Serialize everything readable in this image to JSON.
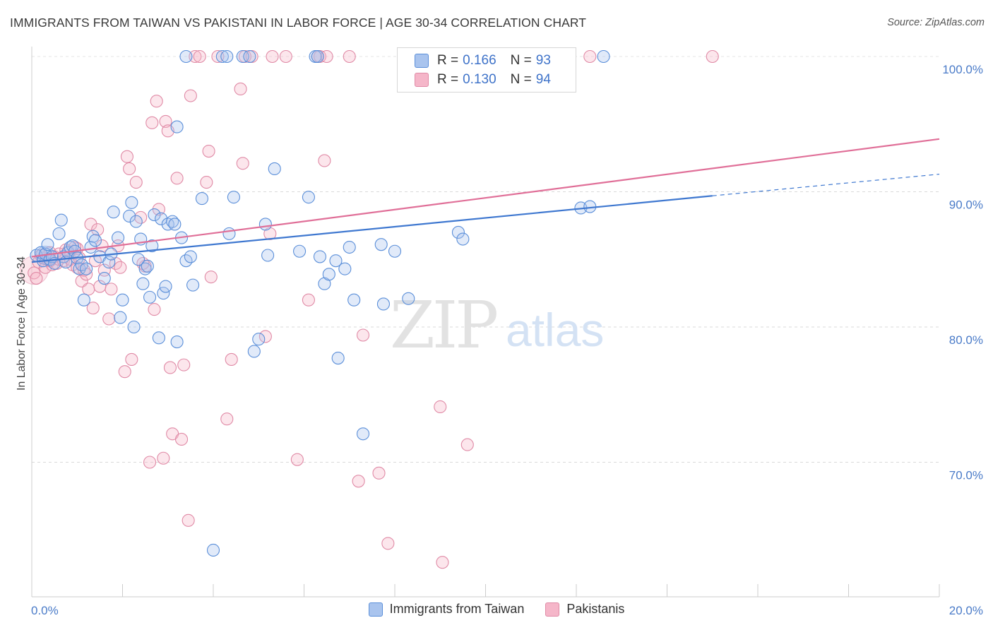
{
  "title": "IMMIGRANTS FROM TAIWAN VS PAKISTANI IN LABOR FORCE | AGE 30-34 CORRELATION CHART",
  "source_label": "Source: ZipAtlas.com",
  "watermark": {
    "zip": "ZIP",
    "atlas": "atlas"
  },
  "colors": {
    "blue_fill": "#a9c4ee",
    "blue_stroke": "#5b8fd9",
    "blue_line": "#3f78d0",
    "pink_fill": "#f5b6c9",
    "pink_stroke": "#e08aa6",
    "pink_line": "#e06f98",
    "grid": "#d9d9d9",
    "tick_text": "#4a7bc8"
  },
  "legend": {
    "rows": [
      {
        "r_label": "R =",
        "r_value": "0.166",
        "n_label": "N =",
        "n_value": "93"
      },
      {
        "r_label": "R =",
        "r_value": "0.130",
        "n_label": "N =",
        "n_value": "94"
      }
    ]
  },
  "bottom_legend": [
    "Immigrants from Taiwan",
    "Pakistanis"
  ],
  "chart_data": {
    "type": "scatter",
    "title": "IMMIGRANTS FROM TAIWAN VS PAKISTANI IN LABOR FORCE | AGE 30-34 CORRELATION CHART",
    "xlabel": "",
    "ylabel": "In Labor Force | Age 30-34",
    "xlim": [
      0,
      20
    ],
    "ylim": [
      60,
      102
    ],
    "x_tick_labels": [
      "0.0%",
      "20.0%"
    ],
    "y_ticks": [
      70,
      80,
      90,
      100
    ],
    "y_tick_labels": [
      "70.0%",
      "80.0%",
      "90.0%",
      "100.0%"
    ],
    "grid": true,
    "series": [
      {
        "name": "Immigrants from Taiwan",
        "R": 0.166,
        "N": 93,
        "trend": {
          "x0": 0,
          "y0": 84.8,
          "x1": 15.0,
          "y1": 89.7,
          "dash_to_x": 20,
          "dash_to_y": 91.3
        },
        "points": [
          [
            0.1,
            85.3
          ],
          [
            0.2,
            85.5
          ],
          [
            0.25,
            84.9
          ],
          [
            0.3,
            85.4
          ],
          [
            0.35,
            86.1
          ],
          [
            0.4,
            85.0
          ],
          [
            0.45,
            85.2
          ],
          [
            0.5,
            84.7
          ],
          [
            0.6,
            86.9
          ],
          [
            0.65,
            87.9
          ],
          [
            0.7,
            85.2
          ],
          [
            0.75,
            84.8
          ],
          [
            0.8,
            85.5
          ],
          [
            0.85,
            85.9
          ],
          [
            0.9,
            86.0
          ],
          [
            0.95,
            85.6
          ],
          [
            1.0,
            85.1
          ],
          [
            1.05,
            84.3
          ],
          [
            1.1,
            84.6
          ],
          [
            1.15,
            82.0
          ],
          [
            1.2,
            84.3
          ],
          [
            1.3,
            85.9
          ],
          [
            1.35,
            86.7
          ],
          [
            1.4,
            86.4
          ],
          [
            1.5,
            85.2
          ],
          [
            1.6,
            83.6
          ],
          [
            1.7,
            84.8
          ],
          [
            1.75,
            85.4
          ],
          [
            1.8,
            88.5
          ],
          [
            1.9,
            86.6
          ],
          [
            1.95,
            80.7
          ],
          [
            2.0,
            82.0
          ],
          [
            2.15,
            88.2
          ],
          [
            2.2,
            89.2
          ],
          [
            2.25,
            80.0
          ],
          [
            2.3,
            87.8
          ],
          [
            2.35,
            85.0
          ],
          [
            2.4,
            86.5
          ],
          [
            2.45,
            83.2
          ],
          [
            2.5,
            84.3
          ],
          [
            2.55,
            84.5
          ],
          [
            2.6,
            82.2
          ],
          [
            2.65,
            86.0
          ],
          [
            2.7,
            88.3
          ],
          [
            2.8,
            79.2
          ],
          [
            2.85,
            88.0
          ],
          [
            2.9,
            82.5
          ],
          [
            2.95,
            83.0
          ],
          [
            3.0,
            87.6
          ],
          [
            3.1,
            87.8
          ],
          [
            3.15,
            87.6
          ],
          [
            3.2,
            78.9
          ],
          [
            3.3,
            86.6
          ],
          [
            3.4,
            84.9
          ],
          [
            3.5,
            85.2
          ],
          [
            3.55,
            83.1
          ],
          [
            3.75,
            89.5
          ],
          [
            4.0,
            63.5
          ],
          [
            4.2,
            100.0
          ],
          [
            4.3,
            100.0
          ],
          [
            4.35,
            86.9
          ],
          [
            4.45,
            89.6
          ],
          [
            4.65,
            100.0
          ],
          [
            4.8,
            100.0
          ],
          [
            4.9,
            78.2
          ],
          [
            5.0,
            79.1
          ],
          [
            5.15,
            87.6
          ],
          [
            5.2,
            85.3
          ],
          [
            5.35,
            91.7
          ],
          [
            5.9,
            85.6
          ],
          [
            6.1,
            89.6
          ],
          [
            6.25,
            100.0
          ],
          [
            6.3,
            100.0
          ],
          [
            6.35,
            85.2
          ],
          [
            6.45,
            83.2
          ],
          [
            6.55,
            83.9
          ],
          [
            6.7,
            84.9
          ],
          [
            6.75,
            77.7
          ],
          [
            6.9,
            84.3
          ],
          [
            7.0,
            85.9
          ],
          [
            7.1,
            82.0
          ],
          [
            7.3,
            72.1
          ],
          [
            7.7,
            86.1
          ],
          [
            7.75,
            81.7
          ],
          [
            8.0,
            85.6
          ],
          [
            8.3,
            82.1
          ],
          [
            9.4,
            87.0
          ],
          [
            9.5,
            86.5
          ],
          [
            12.1,
            88.8
          ],
          [
            12.3,
            88.9
          ],
          [
            12.6,
            100.0
          ],
          [
            3.4,
            100.0
          ],
          [
            3.2,
            94.8
          ]
        ]
      },
      {
        "name": "Pakistanis",
        "R": 0.13,
        "N": 94,
        "trend": {
          "x0": 0,
          "y0": 85.2,
          "x1": 20,
          "y1": 93.9
        },
        "points": [
          [
            0.05,
            84.0
          ],
          [
            0.1,
            83.6
          ],
          [
            0.15,
            84.8
          ],
          [
            0.2,
            85.3
          ],
          [
            0.25,
            85.1
          ],
          [
            0.3,
            84.4
          ],
          [
            0.35,
            85.0
          ],
          [
            0.4,
            85.5
          ],
          [
            0.45,
            84.6
          ],
          [
            0.5,
            85.2
          ],
          [
            0.55,
            84.7
          ],
          [
            0.6,
            85.0
          ],
          [
            0.7,
            84.9
          ],
          [
            0.8,
            85.6
          ],
          [
            0.85,
            85.0
          ],
          [
            0.9,
            84.6
          ],
          [
            1.0,
            84.4
          ],
          [
            1.05,
            85.1
          ],
          [
            1.1,
            83.4
          ],
          [
            1.15,
            84.2
          ],
          [
            1.2,
            83.9
          ],
          [
            1.25,
            82.8
          ],
          [
            1.3,
            87.6
          ],
          [
            1.35,
            81.4
          ],
          [
            1.45,
            87.2
          ],
          [
            1.55,
            86.0
          ],
          [
            1.6,
            84.2
          ],
          [
            1.7,
            80.6
          ],
          [
            1.75,
            82.8
          ],
          [
            1.85,
            84.7
          ],
          [
            1.9,
            86.0
          ],
          [
            1.95,
            84.4
          ],
          [
            2.05,
            76.7
          ],
          [
            2.1,
            92.6
          ],
          [
            2.15,
            91.7
          ],
          [
            2.2,
            77.6
          ],
          [
            2.3,
            90.7
          ],
          [
            2.4,
            88.1
          ],
          [
            2.5,
            84.5
          ],
          [
            2.6,
            70.0
          ],
          [
            2.65,
            95.1
          ],
          [
            2.7,
            81.3
          ],
          [
            2.75,
            96.7
          ],
          [
            2.8,
            88.7
          ],
          [
            2.9,
            70.3
          ],
          [
            2.95,
            95.2
          ],
          [
            3.0,
            94.5
          ],
          [
            3.05,
            77.0
          ],
          [
            3.1,
            72.1
          ],
          [
            3.2,
            91.0
          ],
          [
            3.3,
            71.7
          ],
          [
            3.35,
            77.2
          ],
          [
            3.45,
            65.7
          ],
          [
            3.5,
            97.1
          ],
          [
            3.6,
            100.0
          ],
          [
            3.7,
            100.0
          ],
          [
            3.85,
            90.7
          ],
          [
            3.9,
            93.0
          ],
          [
            3.95,
            83.7
          ],
          [
            4.1,
            100.0
          ],
          [
            4.3,
            73.2
          ],
          [
            4.4,
            77.6
          ],
          [
            4.6,
            97.6
          ],
          [
            4.65,
            92.1
          ],
          [
            4.7,
            100.0
          ],
          [
            4.85,
            100.0
          ],
          [
            5.15,
            79.3
          ],
          [
            5.25,
            86.9
          ],
          [
            5.3,
            100.0
          ],
          [
            5.6,
            100.0
          ],
          [
            5.85,
            70.2
          ],
          [
            6.1,
            82.0
          ],
          [
            6.3,
            100.0
          ],
          [
            6.35,
            100.0
          ],
          [
            6.45,
            92.3
          ],
          [
            6.5,
            100.0
          ],
          [
            7.0,
            100.0
          ],
          [
            7.2,
            68.6
          ],
          [
            7.3,
            79.4
          ],
          [
            7.65,
            69.2
          ],
          [
            7.85,
            64.0
          ],
          [
            9.0,
            74.1
          ],
          [
            9.05,
            62.6
          ],
          [
            9.6,
            71.3
          ],
          [
            12.3,
            100.0
          ],
          [
            15.0,
            100.0
          ],
          [
            0.4,
            84.9
          ],
          [
            0.6,
            85.4
          ],
          [
            0.75,
            85.7
          ],
          [
            1.0,
            85.8
          ],
          [
            1.4,
            84.9
          ],
          [
            2.45,
            84.7
          ],
          [
            1.5,
            83.0
          ],
          [
            0.95,
            85.9
          ]
        ]
      }
    ]
  }
}
